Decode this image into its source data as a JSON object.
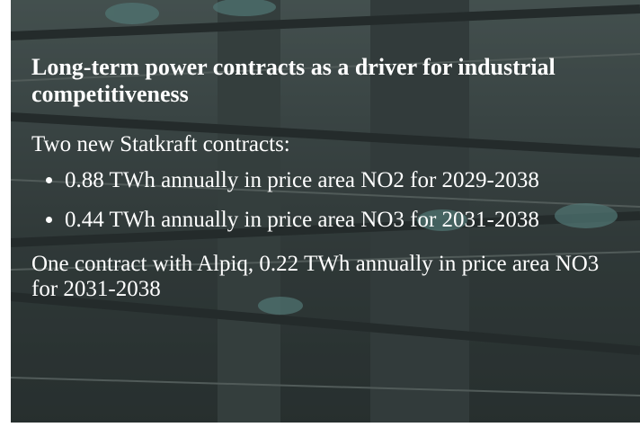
{
  "slide": {
    "title": "Long-term power contracts as a driver for industrial competitiveness",
    "intro": "Two new Statkraft contracts:",
    "bullets": [
      "0.88 TWh annually in price area NO2 for 2029-2038",
      "0.44 TWh annually in price area NO3 for 2031-2038"
    ],
    "closing": "One contract with Alpiq, 0.22 TWh annually in price area NO3 for 2031-2038"
  }
}
